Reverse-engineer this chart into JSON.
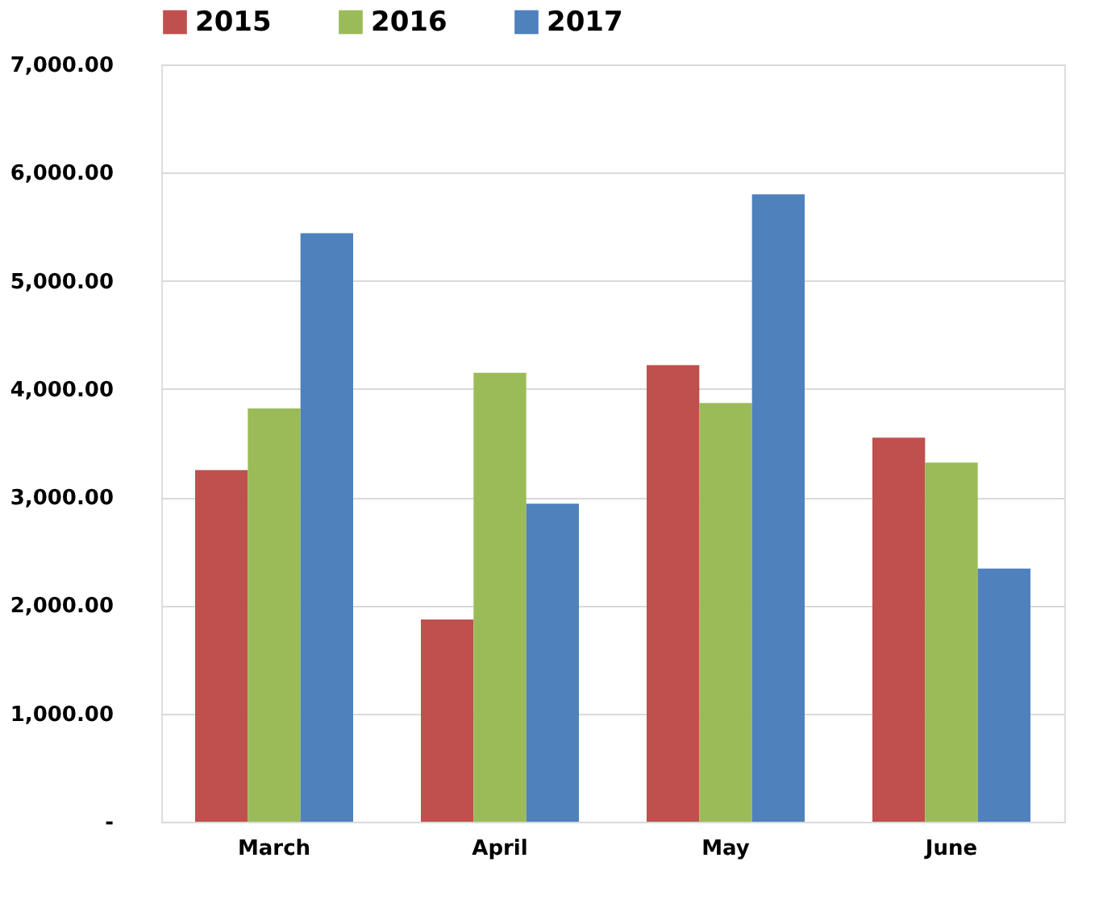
{
  "chart_data": {
    "type": "bar",
    "categories": [
      "March",
      "April",
      "May",
      "June"
    ],
    "series": [
      {
        "name": "2015",
        "color": "#c0504d",
        "values": [
          3250,
          1870,
          4220,
          3550
        ]
      },
      {
        "name": "2016",
        "color": "#9bbb59",
        "values": [
          3820,
          4150,
          3870,
          3320
        ]
      },
      {
        "name": "2017",
        "color": "#4f81bd",
        "values": [
          5440,
          2940,
          5800,
          2340
        ]
      }
    ],
    "ylim": [
      0,
      7000
    ],
    "yticks": [
      {
        "value": 0,
        "label": "-"
      },
      {
        "value": 1000,
        "label": "1,000.00"
      },
      {
        "value": 2000,
        "label": "2,000.00"
      },
      {
        "value": 3000,
        "label": "3,000.00"
      },
      {
        "value": 4000,
        "label": "4,000.00"
      },
      {
        "value": 5000,
        "label": "5,000.00"
      },
      {
        "value": 6000,
        "label": "6,000.00"
      },
      {
        "value": 7000,
        "label": "7,000.00"
      }
    ],
    "grid": "y",
    "legend": "top"
  }
}
